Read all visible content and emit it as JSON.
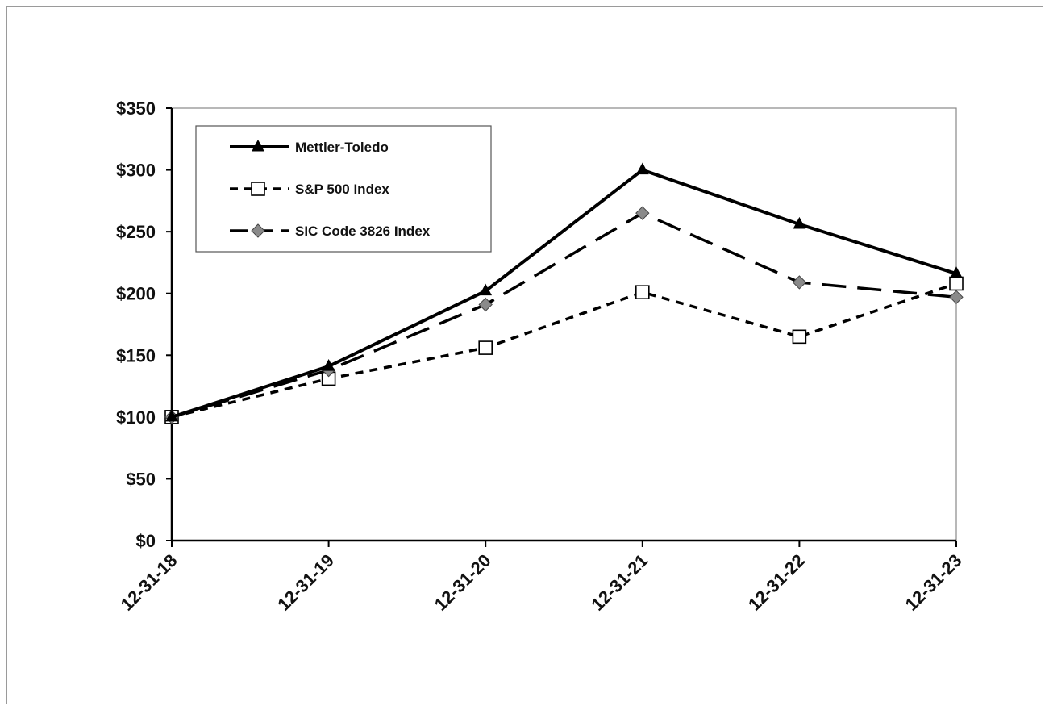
{
  "chart_data": {
    "type": "line",
    "title": "",
    "xlabel": "",
    "ylabel": "",
    "categories": [
      "12-31-18",
      "12-31-19",
      "12-31-20",
      "12-31-21",
      "12-31-22",
      "12-31-23"
    ],
    "ylim": [
      0,
      350
    ],
    "y_ticks": [
      0,
      50,
      100,
      150,
      200,
      250,
      300,
      350
    ],
    "y_tick_labels": [
      "$0",
      "$50",
      "$100",
      "$150",
      "$200",
      "$250",
      "$300",
      "$350"
    ],
    "grid": false,
    "legend_position": "top-left",
    "series": [
      {
        "name": "Mettler-Toledo",
        "values": [
          100,
          141,
          202,
          300,
          256,
          216
        ],
        "color": "#000000",
        "line": "solid",
        "marker": "triangle"
      },
      {
        "name": "S&P 500 Index",
        "values": [
          100,
          131,
          156,
          201,
          165,
          208
        ],
        "color": "#000000",
        "line": "dashed",
        "marker": "square"
      },
      {
        "name": "SIC Code 3826 Index",
        "values": [
          100,
          138,
          191,
          265,
          209,
          197
        ],
        "color": "#000000",
        "line": "long-dash",
        "marker": "diamond"
      }
    ]
  }
}
